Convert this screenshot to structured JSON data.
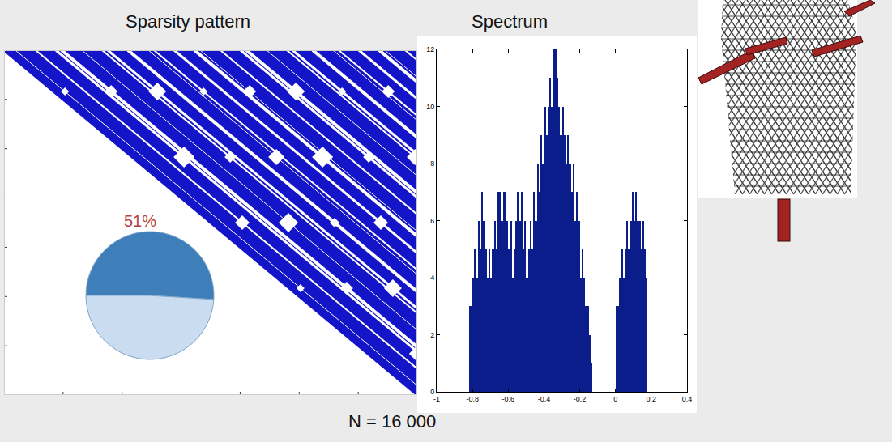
{
  "caption": "N = 16 000",
  "chart_data": [
    {
      "type": "spy",
      "title": "Sparsity pattern",
      "tick_labels": false
    },
    {
      "type": "pie",
      "values": [
        51,
        49
      ],
      "value_labels": [
        "51%",
        null
      ],
      "colors": [
        "#3f7fb9",
        "#c9dcf0"
      ],
      "data_labels": true
    },
    {
      "type": "histogram",
      "title": "Spectrum",
      "color": "#0b1d8a",
      "bins": [
        -0.82,
        -0.81,
        -0.8,
        -0.79,
        -0.78,
        -0.77,
        -0.76,
        -0.75,
        -0.74,
        -0.73,
        -0.72,
        -0.71,
        -0.7,
        -0.69,
        -0.68,
        -0.67,
        -0.66,
        -0.65,
        -0.64,
        -0.63,
        -0.62,
        -0.61,
        -0.6,
        -0.59,
        -0.58,
        -0.57,
        -0.56,
        -0.55,
        -0.54,
        -0.53,
        -0.52,
        -0.51,
        -0.5,
        -0.49,
        -0.48,
        -0.47,
        -0.46,
        -0.45,
        -0.44,
        -0.43,
        -0.42,
        -0.41,
        -0.4,
        -0.39,
        -0.38,
        -0.37,
        -0.36,
        -0.35,
        -0.34,
        -0.33,
        -0.32,
        -0.31,
        -0.3,
        -0.29,
        -0.28,
        -0.27,
        -0.26,
        -0.25,
        -0.24,
        -0.23,
        -0.22,
        -0.21,
        -0.2,
        -0.19,
        -0.18,
        -0.17,
        -0.16,
        -0.15,
        -0.14,
        -0.13,
        -0.12,
        -0.11,
        -0.1,
        -0.09,
        -0.08,
        -0.07,
        -0.06,
        -0.05,
        -0.04,
        -0.03,
        -0.02,
        -0.01,
        0,
        0.01,
        0.02,
        0.03,
        0.04,
        0.05,
        0.06,
        0.07,
        0.08,
        0.09,
        0.1,
        0.11,
        0.12,
        0.13,
        0.14,
        0.15,
        0.16,
        0.17,
        0.18
      ],
      "counts": [
        3,
        3,
        4,
        5,
        4,
        6,
        5,
        7,
        6,
        5,
        4,
        5,
        4,
        5,
        6,
        5,
        7,
        7,
        6,
        7,
        7,
        6,
        5,
        6,
        4,
        5,
        6,
        7,
        6,
        7,
        5,
        6,
        4,
        5,
        6,
        5,
        7,
        6,
        8,
        7,
        9,
        8,
        10,
        9,
        10,
        11,
        10,
        12,
        12,
        11,
        10,
        9,
        10,
        9,
        8,
        9,
        8,
        7,
        8,
        6,
        7,
        6,
        4,
        5,
        4,
        3,
        3,
        2,
        1,
        0,
        0,
        0,
        0,
        0,
        0,
        0,
        0,
        0,
        0,
        0,
        0,
        0,
        3,
        3,
        4,
        5,
        4,
        5,
        6,
        5,
        6,
        7,
        6,
        7,
        6,
        6,
        5,
        6,
        5,
        4
      ],
      "xlim": [
        -1,
        0.4
      ],
      "xticks": [
        -1,
        -0.8,
        -0.6,
        -0.4,
        -0.2,
        0,
        0.2,
        0.4
      ],
      "ylim": [
        0,
        12
      ],
      "yticks": [
        0,
        2,
        4,
        6,
        8,
        10,
        12
      ]
    }
  ]
}
